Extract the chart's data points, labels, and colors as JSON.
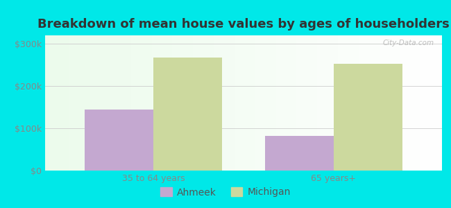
{
  "title": "Breakdown of mean house values by ages of householders",
  "categories": [
    "35 to 64 years",
    "65 years+"
  ],
  "ahmeek_values": [
    145000,
    82000
  ],
  "michigan_values": [
    268000,
    252000
  ],
  "ahmeek_color": "#c4a8d0",
  "michigan_color": "#ccd99e",
  "background_color": "#00e8e8",
  "yticks": [
    0,
    100000,
    200000,
    300000
  ],
  "ytick_labels": [
    "$0",
    "$100k",
    "$200k",
    "$300k"
  ],
  "ylim": [
    0,
    320000
  ],
  "bar_width": 0.38,
  "legend_labels": [
    "Ahmeek",
    "Michigan"
  ],
  "title_fontsize": 13,
  "tick_fontsize": 9,
  "legend_fontsize": 10,
  "tick_color": "#888888",
  "grid_color": "#cccccc"
}
